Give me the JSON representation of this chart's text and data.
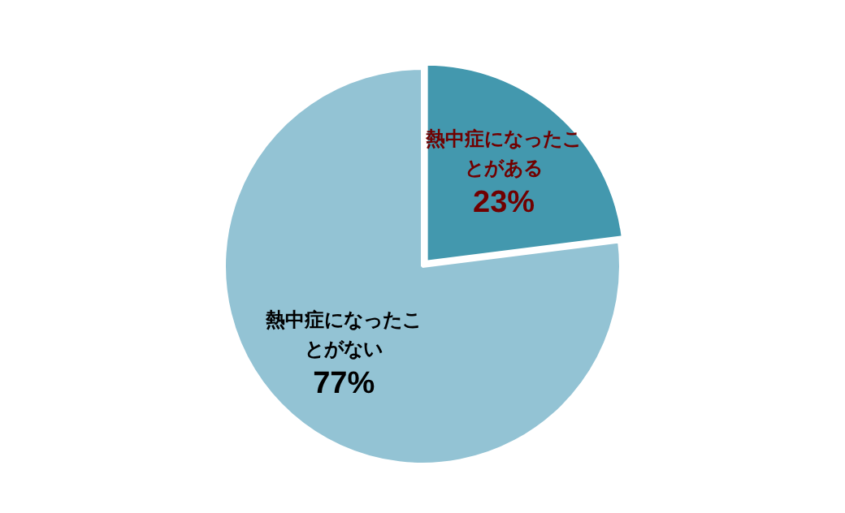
{
  "chart_data": {
    "type": "pie",
    "categories": [
      "熱中症になったことがある",
      "熱中症になったことがない"
    ],
    "values": [
      23,
      77
    ],
    "colors": [
      "#4398ae",
      "#93c3d4"
    ],
    "value_labels": [
      "23%",
      "77%"
    ],
    "legend": false
  }
}
